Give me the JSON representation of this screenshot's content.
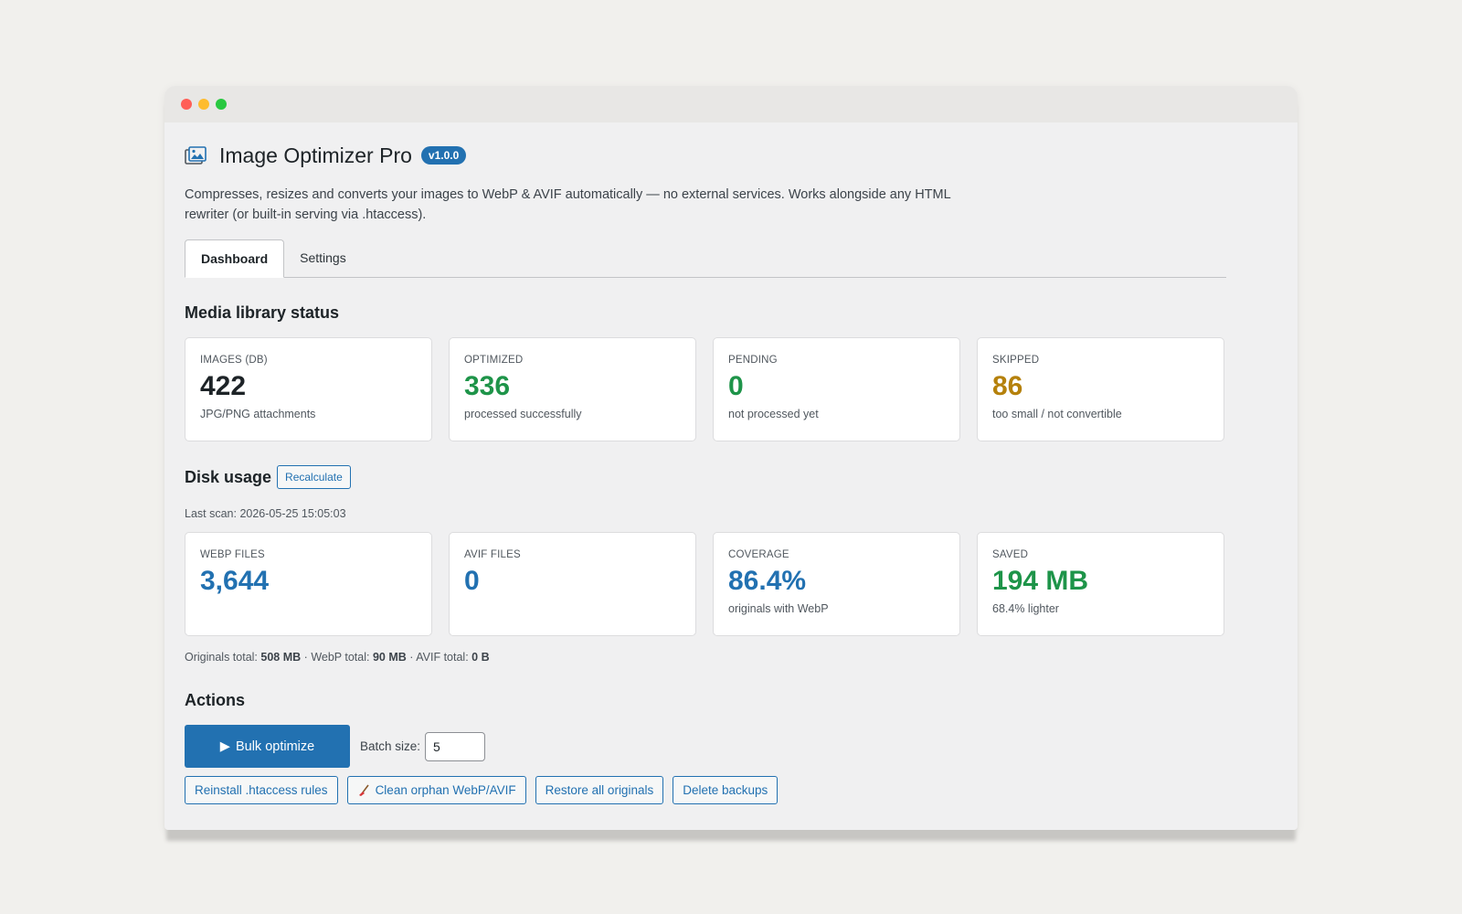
{
  "app": {
    "title": "Image Optimizer Pro",
    "version": "v1.0.0",
    "icon": "images-stack-icon",
    "description": "Compresses, resizes and converts your images to WebP & AVIF automatically — no external services. Works alongside any HTML rewriter (or built-in serving via .htaccess)."
  },
  "tabs": [
    {
      "label": "Dashboard",
      "active": true
    },
    {
      "label": "Settings",
      "active": false
    }
  ],
  "media_status": {
    "title": "Media library status",
    "cards": [
      {
        "label": "IMAGES (DB)",
        "value": "422",
        "sub": "JPG/PNG attachments",
        "color": "#1d2327"
      },
      {
        "label": "OPTIMIZED",
        "value": "336",
        "sub": "processed successfully",
        "color": "#1e9449"
      },
      {
        "label": "PENDING",
        "value": "0",
        "sub": "not processed yet",
        "color": "#1e9449"
      },
      {
        "label": "SKIPPED",
        "value": "86",
        "sub": "too small / not convertible",
        "color": "#b5810b"
      }
    ]
  },
  "disk_usage": {
    "title": "Disk usage",
    "recalculate_label": "Recalculate",
    "last_scan": "Last scan: 2026-05-25 15:05:03",
    "cards": [
      {
        "label": "WEBP FILES",
        "value": "3,644",
        "sub": "",
        "color": "#2271b1"
      },
      {
        "label": "AVIF FILES",
        "value": "0",
        "sub": "",
        "color": "#2271b1"
      },
      {
        "label": "COVERAGE",
        "value": "86.4%",
        "sub": "originals with WebP",
        "color": "#2271b1"
      },
      {
        "label": "SAVED",
        "value": "194 MB",
        "sub": "68.4% lighter",
        "color": "#1e9449"
      }
    ],
    "totals": {
      "originals_label": "Originals total:",
      "originals_value": "508 MB",
      "webp_label": "WebP total:",
      "webp_value": "90 MB",
      "avif_label": "AVIF total:",
      "avif_value": "0 B",
      "separator": "·"
    }
  },
  "actions": {
    "title": "Actions",
    "bulk_label": "Bulk optimize",
    "batch_label": "Batch size:",
    "batch_value": "5",
    "buttons": [
      {
        "label": "Reinstall .htaccess rules",
        "icon": ""
      },
      {
        "label": "Clean orphan WebP/AVIF",
        "icon": "broom-icon"
      },
      {
        "label": "Restore all originals",
        "icon": ""
      },
      {
        "label": "Delete backups",
        "icon": ""
      }
    ]
  },
  "colors": {
    "accent": "#2271b1",
    "success": "#1e9449",
    "warning": "#b5810b"
  }
}
